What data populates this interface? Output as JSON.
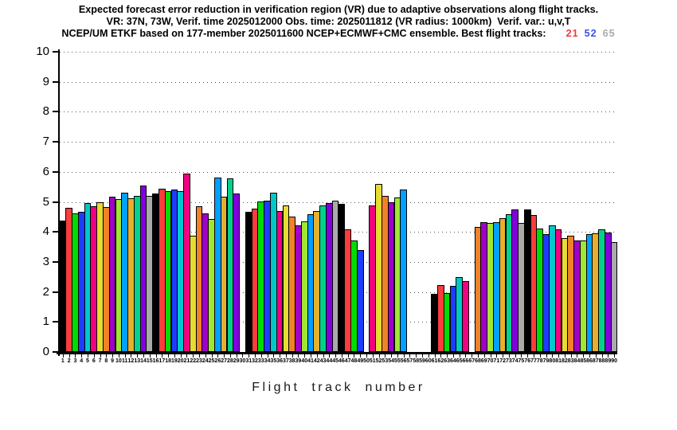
{
  "chart_data": {
    "type": "bar",
    "title_lines": [
      "Expected forecast error reduction in verification region (VR) due to adaptive observations along flight tracks.",
      "VR: 37N, 73W, Verif. time 2025012000 Obs. time: 2025011812 (VR radius: 1000km)  Verif. var.: u,v,T",
      "NCEP/UM ETKF based on 177-member 2025011600 NCEP+ECMWF+CMC ensemble. Best flight tracks:"
    ],
    "best_flight_tracks": [
      {
        "label": "21",
        "color": "#e83c3c"
      },
      {
        "label": "52",
        "color": "#3c50e8"
      },
      {
        "label": "65",
        "color": "#aaaaaa"
      }
    ],
    "xlabel": "Flight track number",
    "ylabel": "",
    "ylim": [
      0,
      10
    ],
    "yticks": [
      0,
      1,
      2,
      3,
      4,
      5,
      6,
      7,
      8,
      9,
      10
    ],
    "grid": "dotted-horizontal",
    "legend": "none",
    "x_range": [
      1,
      90
    ],
    "missing_tracks": [
      30,
      50,
      57,
      58,
      59,
      60,
      67
    ],
    "palette": [
      "#000000",
      "#fa3c3c",
      "#00dc00",
      "#1e3cff",
      "#00c8c8",
      "#f00082",
      "#e6dc32",
      "#f08228",
      "#a000c8",
      "#a0e632",
      "#00a0ff",
      "#e6af2d",
      "#00d28c",
      "#8200dc",
      "#aaaaaa"
    ],
    "color_rule": "bar color = palette[(track_number - 1) mod 15]",
    "values": [
      4.38,
      4.8,
      4.62,
      4.67,
      4.96,
      4.86,
      5.0,
      4.84,
      5.17,
      5.08,
      5.31,
      5.12,
      5.2,
      5.54,
      5.21,
      5.29,
      5.43,
      5.36,
      5.41,
      5.36,
      5.94,
      3.86,
      4.85,
      4.61,
      4.43,
      5.8,
      5.17,
      5.77,
      5.28,
      null,
      4.66,
      4.78,
      5.01,
      5.04,
      5.31,
      4.7,
      4.88,
      4.5,
      4.21,
      4.34,
      4.58,
      4.7,
      4.89,
      4.95,
      5.05,
      4.93,
      4.08,
      3.71,
      3.4,
      null,
      4.88,
      5.6,
      5.2,
      4.99,
      5.15,
      5.41,
      null,
      null,
      null,
      null,
      1.93,
      2.22,
      1.96,
      2.2,
      2.49,
      2.36,
      null,
      4.17,
      4.33,
      4.3,
      4.32,
      4.45,
      4.59,
      4.76,
      4.3,
      4.76,
      4.57,
      4.11,
      3.93,
      4.22,
      4.08,
      3.79,
      3.87,
      3.71,
      3.71,
      3.93,
      3.95,
      4.08,
      3.98,
      3.66
    ]
  }
}
